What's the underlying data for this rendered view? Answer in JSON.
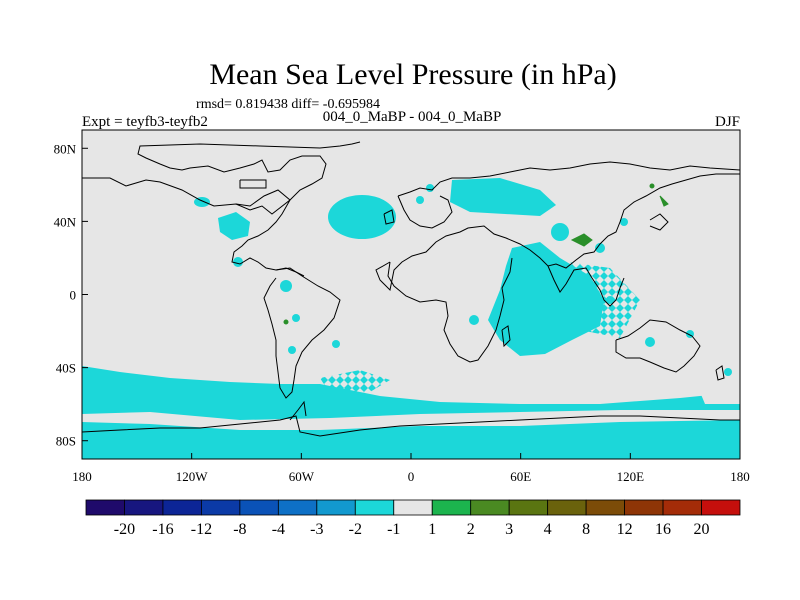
{
  "title": "Mean Sea Level Pressure (in hPa)",
  "stats_line": "rmsd= 0.819438 diff= -0.695984",
  "comparison": "004_0_MaBP - 004_0_MaBP",
  "experiment": "Expt = teyfb3-teyfb2",
  "season": "DJF",
  "lat_ticks": [
    {
      "lat": 80,
      "label": "80N"
    },
    {
      "lat": 40,
      "label": "40N"
    },
    {
      "lat": 0,
      "label": "0"
    },
    {
      "lat": -40,
      "label": "40S"
    },
    {
      "lat": -80,
      "label": "80S"
    }
  ],
  "lon_ticks": [
    {
      "lon": -180,
      "label": "180"
    },
    {
      "lon": -120,
      "label": "120W"
    },
    {
      "lon": -60,
      "label": "60W"
    },
    {
      "lon": 0,
      "label": "0"
    },
    {
      "lon": 60,
      "label": "60E"
    },
    {
      "lon": 120,
      "label": "120E"
    },
    {
      "lon": 180,
      "label": "180"
    }
  ],
  "colorbar": {
    "colors": [
      "#1f0a6b",
      "#17167f",
      "#0c2596",
      "#0b3aa6",
      "#0a52b7",
      "#0e70c6",
      "#1299cf",
      "#1cd7d9",
      "#e6e6e6",
      "#1cb44e",
      "#4a8a22",
      "#5a7511",
      "#6a620c",
      "#7c4c08",
      "#8e3506",
      "#a42c08",
      "#c50f0c"
    ],
    "labels": [
      "-20",
      "-16",
      "-12",
      "-8",
      "-4",
      "-3",
      "-2",
      "-1",
      "1",
      "2",
      "3",
      "4",
      "8",
      "12",
      "16",
      "20"
    ]
  },
  "map": {
    "background_color": "#e6e6e6",
    "anomaly_color": "#1cd7d9",
    "positive_color": "#2a8f2a",
    "coast_color": "#000000"
  }
}
